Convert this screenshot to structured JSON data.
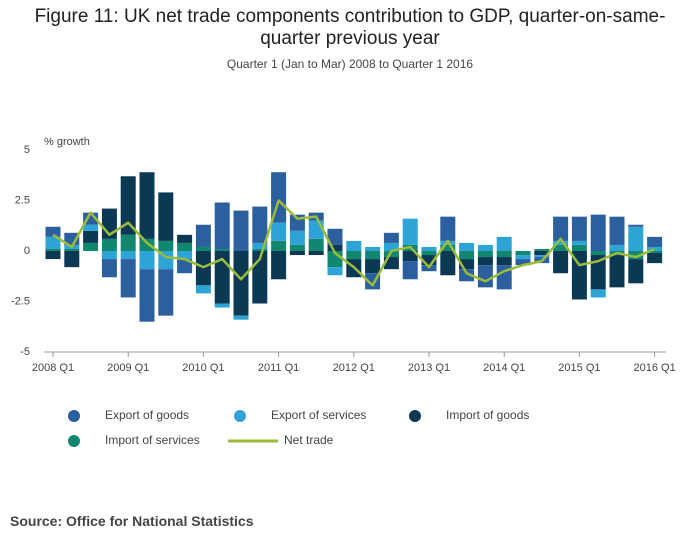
{
  "chart_data": {
    "type": "bar",
    "title": "Figure 11: UK net trade components contribution to GDP, quarter-on-same-quarter previous year",
    "subtitle": "Quarter 1 (Jan to Mar) 2008 to Quarter 1 2016",
    "y_label": "% growth",
    "source": "Source: Office for National Statistics",
    "categories": [
      "2008 Q1",
      null,
      null,
      null,
      "2009 Q1",
      null,
      null,
      null,
      "2010 Q1",
      null,
      null,
      null,
      "2011 Q1",
      null,
      null,
      null,
      "2012 Q1",
      null,
      null,
      null,
      "2013 Q1",
      null,
      null,
      null,
      "2014 Q1",
      null,
      null,
      null,
      "2015 Q1",
      null,
      null,
      null,
      "2016 Q1"
    ],
    "ylim": [
      -5,
      5
    ],
    "yticks": [
      -5,
      -2.5,
      0,
      2.5,
      5
    ],
    "series": [
      {
        "name": "Export of goods",
        "color": "#2c5f9e",
        "values": [
          0.5,
          0.6,
          0.6,
          -0.9,
          -1.9,
          -2.6,
          -2.3,
          -0.7,
          1.1,
          2.3,
          2.0,
          1.8,
          2.5,
          0.8,
          0.4,
          0.8,
          0.0,
          -0.8,
          0.5,
          -0.9,
          -0.3,
          1.2,
          -0.6,
          -1.1,
          -1.2,
          -0.3,
          -0.3,
          1.2,
          1.2,
          1.8,
          1.4,
          0.1,
          0.5
        ]
      },
      {
        "name": "Export of services",
        "color": "#2da3d6",
        "values": [
          0.6,
          0.2,
          0.3,
          -0.4,
          -0.4,
          -0.9,
          -0.9,
          -0.4,
          -0.4,
          -0.2,
          -0.2,
          0.3,
          0.9,
          0.7,
          0.9,
          -0.4,
          0.5,
          0.2,
          0.4,
          1.3,
          0.2,
          0.2,
          0.4,
          0.3,
          0.7,
          -0.2,
          -0.1,
          0.2,
          0.2,
          -0.4,
          0.3,
          1.2,
          0.2
        ]
      },
      {
        "name": "Import of goods",
        "color": "#0b3954",
        "values": [
          -0.4,
          -0.8,
          0.6,
          1.5,
          2.9,
          3.3,
          2.4,
          0.4,
          -1.7,
          -2.6,
          -3.2,
          -2.6,
          -1.4,
          -0.2,
          -0.2,
          0.3,
          -0.9,
          -0.7,
          -0.6,
          -0.5,
          -0.5,
          -1.2,
          -0.5,
          -0.4,
          -0.4,
          0.0,
          -0.2,
          -1.1,
          -2.4,
          -1.7,
          -1.6,
          -1.2,
          -0.5
        ]
      },
      {
        "name": "Import of services",
        "color": "#12876f",
        "values": [
          0.1,
          0.1,
          0.4,
          0.6,
          0.8,
          0.6,
          0.5,
          0.4,
          0.2,
          0.1,
          0.0,
          0.1,
          0.5,
          0.3,
          0.6,
          -0.8,
          -0.4,
          -0.4,
          -0.3,
          0.3,
          -0.2,
          0.3,
          -0.4,
          -0.3,
          -0.3,
          -0.2,
          0.1,
          0.3,
          0.3,
          -0.2,
          -0.2,
          -0.4,
          -0.1
        ]
      },
      {
        "name": "Net trade",
        "type": "line",
        "color": "#9bbb3c",
        "values": [
          0.8,
          0.2,
          1.9,
          0.8,
          1.4,
          0.4,
          -0.3,
          -0.4,
          -0.8,
          -0.4,
          -1.4,
          -0.4,
          2.5,
          1.6,
          1.7,
          -0.1,
          -0.8,
          -1.7,
          0.0,
          0.2,
          -0.8,
          0.5,
          -1.1,
          -1.5,
          -1.0,
          -0.7,
          -0.5,
          0.6,
          -0.7,
          -0.5,
          -0.1,
          -0.3,
          0.1
        ]
      }
    ]
  }
}
